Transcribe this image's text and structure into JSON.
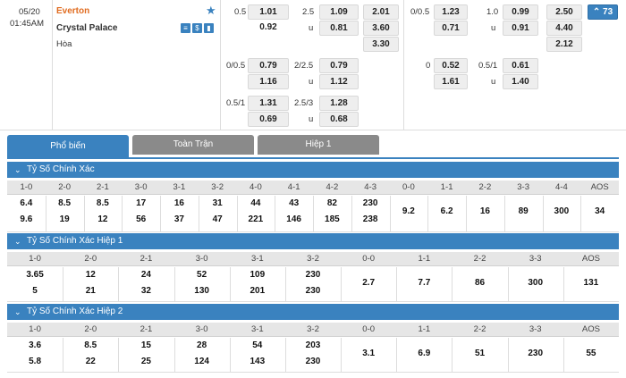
{
  "match": {
    "date": "05/20",
    "time": "01:45AM",
    "home": "Everton",
    "away": "Crystal Palace",
    "draw": "Hòa",
    "badge_count": "73"
  },
  "odds": {
    "ft_ah_line1": "0.5",
    "ft_ah_home1": "1.01",
    "ft_ah_away1": "0.92",
    "ft_ou_line1": "2.5",
    "ft_ou_over1": "1.09",
    "ft_ou_u1": "u",
    "ft_ou_under1": "0.81",
    "ft_1x2_home": "2.01",
    "ft_1x2_away": "3.60",
    "ft_1x2_draw": "3.30",
    "ft_ah_line2": "0/0.5",
    "ft_ah_home2": "0.79",
    "ft_ah_away2": "1.16",
    "ft_ou_line2": "2/2.5",
    "ft_ou_over2": "0.79",
    "ft_ou_u2": "u",
    "ft_ou_under2": "1.12",
    "ft_ah_line3": "0.5/1",
    "ft_ah_home3": "1.31",
    "ft_ah_away3": "0.69",
    "ft_ou_line3": "2.5/3",
    "ft_ou_over3": "1.28",
    "ft_ou_u3": "u",
    "ft_ou_under3": "0.68",
    "h1_ah_line1": "0/0.5",
    "h1_ah_home1": "1.23",
    "h1_ah_away1": "0.71",
    "h1_ou_line1": "1.0",
    "h1_ou_over1": "0.99",
    "h1_ou_u1": "u",
    "h1_ou_under1": "0.91",
    "h1_1x2_home": "2.50",
    "h1_1x2_away": "4.40",
    "h1_1x2_draw": "2.12",
    "h1_ah_line2": "0",
    "h1_ah_home2": "0.52",
    "h1_ah_away2": "1.61",
    "h1_ou_line2": "0.5/1",
    "h1_ou_over2": "0.61",
    "h1_ou_u2": "u",
    "h1_ou_under2": "1.40"
  },
  "tabs": [
    "Phổ biến",
    "Toàn Trận",
    "Hiệp 1"
  ],
  "sections": {
    "s1": {
      "title": "Tỷ Số Chính Xác",
      "headers": [
        "1-0",
        "2-0",
        "2-1",
        "3-0",
        "3-1",
        "3-2",
        "4-0",
        "4-1",
        "4-2",
        "4-3",
        "0-0",
        "1-1",
        "2-2",
        "3-3",
        "4-4",
        "AOS"
      ],
      "top": [
        "6.4",
        "8.5",
        "8.5",
        "17",
        "16",
        "31",
        "44",
        "43",
        "82",
        "230"
      ],
      "bottom": [
        "9.6",
        "19",
        "12",
        "56",
        "37",
        "47",
        "221",
        "146",
        "185",
        "238"
      ],
      "single": [
        "9.2",
        "6.2",
        "16",
        "89",
        "300",
        "34"
      ]
    },
    "s2": {
      "title": "Tỷ Số Chính Xác Hiệp 1",
      "headers": [
        "1-0",
        "2-0",
        "2-1",
        "3-0",
        "3-1",
        "3-2",
        "0-0",
        "1-1",
        "2-2",
        "3-3",
        "AOS"
      ],
      "top": [
        "3.65",
        "12",
        "24",
        "52",
        "109",
        "230"
      ],
      "bottom": [
        "5",
        "21",
        "32",
        "130",
        "201",
        "230"
      ],
      "single": [
        "2.7",
        "7.7",
        "86",
        "300",
        "131"
      ]
    },
    "s3": {
      "title": "Tỷ Số Chính Xác Hiệp 2",
      "headers": [
        "1-0",
        "2-0",
        "2-1",
        "3-0",
        "3-1",
        "3-2",
        "0-0",
        "1-1",
        "2-2",
        "3-3",
        "AOS"
      ],
      "top": [
        "3.6",
        "8.5",
        "15",
        "28",
        "54",
        "203"
      ],
      "bottom": [
        "5.8",
        "22",
        "25",
        "124",
        "143",
        "230"
      ],
      "single": [
        "3.1",
        "6.9",
        "51",
        "230",
        "55"
      ]
    }
  },
  "colors": {
    "accent": "#3a82bf",
    "team_home": "#e06b1f",
    "active_tab": "#3a82bf",
    "inactive_tab": "#8a8a8a"
  }
}
